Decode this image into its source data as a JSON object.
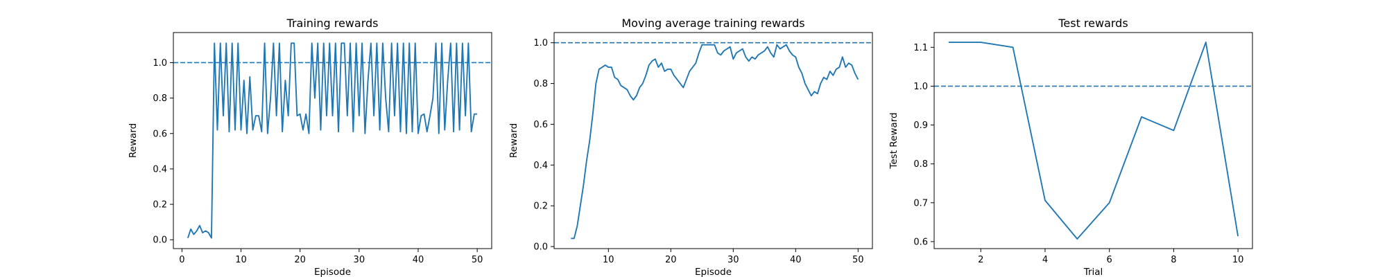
{
  "chart_data": [
    {
      "type": "line",
      "title": "Training rewards",
      "xlabel": "Episode",
      "ylabel": "Reward",
      "color": "#1f77b4",
      "x": [
        1,
        1.5,
        2,
        2.5,
        3,
        3.5,
        4,
        4.5,
        5,
        5.5,
        6,
        6.5,
        7,
        7.5,
        8,
        8.5,
        9,
        9.5,
        10,
        10.5,
        11,
        11.5,
        12,
        12.5,
        13,
        13.5,
        14,
        14.5,
        15,
        15.5,
        16,
        16.5,
        17,
        17.5,
        18,
        18.5,
        19,
        19.5,
        20,
        20.5,
        21,
        21.5,
        22,
        22.5,
        23,
        23.5,
        24,
        24.5,
        25,
        25.5,
        26,
        26.5,
        27,
        27.5,
        28,
        28.5,
        29,
        29.5,
        30,
        30.5,
        31,
        31.5,
        32,
        32.5,
        33,
        33.5,
        34,
        34.5,
        35,
        35.5,
        36,
        36.5,
        37,
        37.5,
        38,
        38.5,
        39,
        39.5,
        40,
        40.5,
        41,
        41.5,
        42,
        42.5,
        43,
        43.5,
        44,
        44.5,
        45,
        45.5,
        46,
        46.5,
        47,
        47.5,
        48,
        48.5,
        49,
        49.5,
        50
      ],
      "values": [
        0.01,
        0.06,
        0.03,
        0.05,
        0.08,
        0.04,
        0.05,
        0.04,
        0.01,
        1.11,
        0.62,
        1.11,
        0.7,
        1.11,
        0.61,
        1.11,
        0.62,
        1.11,
        0.62,
        0.9,
        0.6,
        0.92,
        0.62,
        0.7,
        0.7,
        0.61,
        1.11,
        0.6,
        0.8,
        1.11,
        0.7,
        1.11,
        0.61,
        0.9,
        0.7,
        1.11,
        1.11,
        0.7,
        0.71,
        0.62,
        0.71,
        0.6,
        1.11,
        0.8,
        1.11,
        0.62,
        1.11,
        0.7,
        1.11,
        0.7,
        1.11,
        0.61,
        1.11,
        1.11,
        0.7,
        1.11,
        0.61,
        1.11,
        0.7,
        1.11,
        0.6,
        0.9,
        1.11,
        0.7,
        1.11,
        0.62,
        1.11,
        0.8,
        0.61,
        1.11,
        0.7,
        1.11,
        0.61,
        1.11,
        0.6,
        1.11,
        0.61,
        1.11,
        0.6,
        0.7,
        0.71,
        0.61,
        0.7,
        0.8,
        1.11,
        0.6,
        1.11,
        0.62,
        0.9,
        1.11,
        0.61,
        1.11,
        0.62,
        1.11,
        0.7,
        1.11,
        0.61,
        0.71,
        0.71
      ],
      "hline": 1.0,
      "xlim": [
        -1.45,
        52.45
      ],
      "ylim": [
        -0.05,
        1.17
      ],
      "xticks": [
        0,
        10,
        20,
        30,
        40,
        50
      ],
      "yticks": [
        {
          "value": 0.0,
          "label": "0.0"
        },
        0.2,
        0.4,
        0.6,
        0.8,
        {
          "value": 1.0,
          "label": "1.0"
        }
      ]
    },
    {
      "type": "line",
      "title": "Moving average training rewards",
      "xlabel": "Episode",
      "ylabel": "Reward",
      "color": "#1f77b4",
      "x": [
        4,
        4.5,
        5,
        5.5,
        6,
        6.5,
        7,
        7.5,
        8,
        8.5,
        9,
        9.5,
        10,
        10.5,
        11,
        11.5,
        12,
        12.5,
        13,
        13.5,
        14,
        14.5,
        15,
        15.5,
        16,
        16.5,
        17,
        17.5,
        18,
        18.5,
        19,
        19.5,
        20,
        20.5,
        21,
        21.5,
        22,
        22.5,
        23,
        23.5,
        24,
        24.5,
        25,
        25.5,
        26,
        26.5,
        27,
        27.5,
        28,
        28.5,
        29,
        29.5,
        30,
        30.5,
        31,
        31.5,
        32,
        32.5,
        33,
        33.5,
        34,
        34.5,
        35,
        35.5,
        36,
        36.5,
        37,
        37.5,
        38,
        38.5,
        39,
        39.5,
        40,
        40.5,
        41,
        41.5,
        42,
        42.5,
        43,
        43.5,
        44,
        44.5,
        45,
        45.5,
        46,
        46.5,
        47,
        47.5,
        48,
        48.5,
        49,
        49.5,
        50
      ],
      "values": [
        0.04,
        0.04,
        0.1,
        0.2,
        0.3,
        0.42,
        0.52,
        0.65,
        0.8,
        0.87,
        0.88,
        0.89,
        0.88,
        0.88,
        0.83,
        0.82,
        0.79,
        0.78,
        0.77,
        0.74,
        0.72,
        0.74,
        0.78,
        0.8,
        0.84,
        0.89,
        0.91,
        0.92,
        0.88,
        0.9,
        0.86,
        0.87,
        0.87,
        0.84,
        0.82,
        0.8,
        0.78,
        0.82,
        0.86,
        0.88,
        0.9,
        0.95,
        0.99,
        0.99,
        0.99,
        0.99,
        0.99,
        0.95,
        0.94,
        0.96,
        0.97,
        0.98,
        0.92,
        0.95,
        0.96,
        0.97,
        0.93,
        0.91,
        0.93,
        0.92,
        0.94,
        0.95,
        0.96,
        0.98,
        0.95,
        0.93,
        0.99,
        0.97,
        0.98,
        0.99,
        0.96,
        0.94,
        0.93,
        0.88,
        0.85,
        0.8,
        0.77,
        0.74,
        0.76,
        0.75,
        0.8,
        0.83,
        0.82,
        0.86,
        0.84,
        0.87,
        0.88,
        0.93,
        0.88,
        0.9,
        0.89,
        0.85,
        0.82
      ],
      "hline": 1.0,
      "xlim": [
        1.3,
        52.3
      ],
      "ylim": [
        -0.01,
        1.05
      ],
      "xticks": [
        10,
        20,
        30,
        40,
        50
      ],
      "yticks": [
        {
          "value": 0.0,
          "label": "0.0"
        },
        0.2,
        0.4,
        0.6,
        0.8,
        {
          "value": 1.0,
          "label": "1.0"
        }
      ]
    },
    {
      "type": "line",
      "title": "Test rewards",
      "xlabel": "Trial",
      "ylabel": "Test Reward",
      "color": "#1f77b4",
      "x": [
        1,
        2,
        3,
        4,
        5,
        6,
        7,
        8,
        9,
        10
      ],
      "values": [
        1.113,
        1.113,
        1.1,
        0.706,
        0.607,
        0.7,
        0.921,
        0.886,
        1.113,
        0.614
      ],
      "hline": 1.0,
      "xlim": [
        0.55,
        10.45
      ],
      "ylim": [
        0.582,
        1.138
      ],
      "xticks": [
        2,
        4,
        6,
        8,
        10
      ],
      "yticks": [
        0.6,
        0.7,
        0.8,
        0.9,
        {
          "value": 1.0,
          "label": "1.0"
        },
        1.1
      ]
    }
  ]
}
